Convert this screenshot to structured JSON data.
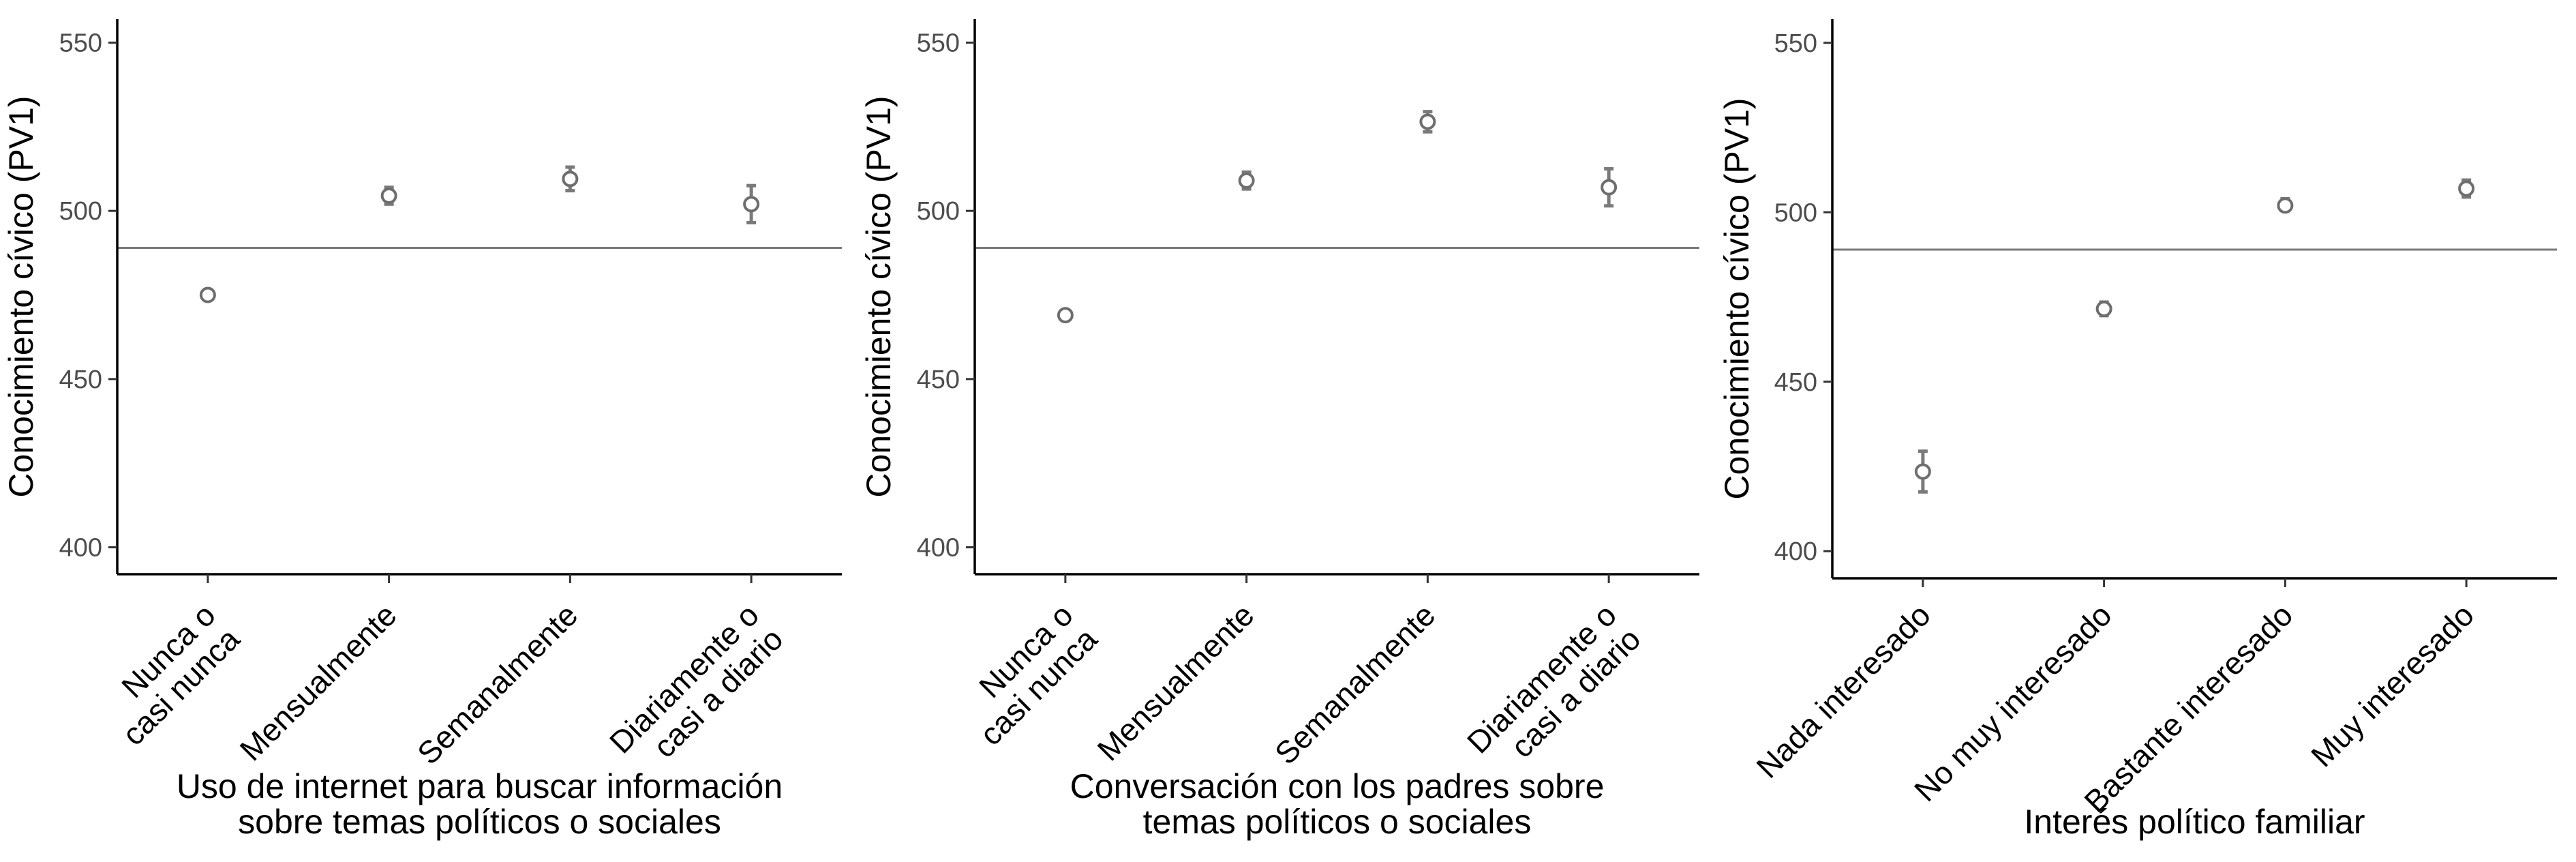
{
  "chart_data": [
    {
      "type": "scatter",
      "ylabel": "Conocimiento cívico (PV1)",
      "xlabel": [
        "Uso de internet para buscar información",
        "sobre temas políticos o sociales"
      ],
      "ylim": [
        392,
        557
      ],
      "yticks": [
        400,
        450,
        500,
        550
      ],
      "reference_line": 489,
      "categories": [
        [
          "Nunca o",
          "casi nunca"
        ],
        [
          "Mensualmente"
        ],
        [
          "Semanalmente"
        ],
        [
          "Diariamente o",
          "casi a diario"
        ]
      ],
      "values": [
        475,
        504.5,
        509.5,
        502
      ],
      "err_low": [
        474,
        502,
        506,
        496.5
      ],
      "err_high": [
        476,
        507,
        513,
        507.5
      ]
    },
    {
      "type": "scatter",
      "ylabel": "Conocimiento cívico (PV1)",
      "xlabel": [
        "Conversación con los padres sobre",
        "temas políticos o sociales"
      ],
      "ylim": [
        392,
        557
      ],
      "yticks": [
        400,
        450,
        500,
        550
      ],
      "reference_line": 489,
      "categories": [
        [
          "Nunca o",
          "casi nunca"
        ],
        [
          "Mensualmente"
        ],
        [
          "Semanalmente"
        ],
        [
          "Diariamente o",
          "casi a diario"
        ]
      ],
      "values": [
        469,
        509,
        526.5,
        507
      ],
      "err_low": [
        467.5,
        506.5,
        523.5,
        501.5
      ],
      "err_high": [
        470.5,
        511.5,
        529.5,
        512.5
      ]
    },
    {
      "type": "scatter",
      "ylabel": "Conocimiento cívico (PV1)",
      "xlabel": [
        "Interés político familiar"
      ],
      "ylim": [
        392,
        557
      ],
      "yticks": [
        400,
        450,
        500,
        550
      ],
      "reference_line": 489,
      "categories": [
        [
          "Nada interesado"
        ],
        [
          "No muy interesado"
        ],
        [
          "Bastante interesado"
        ],
        [
          "Muy interesado"
        ]
      ],
      "values": [
        423.5,
        471.5,
        502,
        507
      ],
      "err_low": [
        417.5,
        469.5,
        500.5,
        504.5
      ],
      "err_high": [
        429.5,
        473.5,
        504,
        509.5
      ]
    }
  ]
}
